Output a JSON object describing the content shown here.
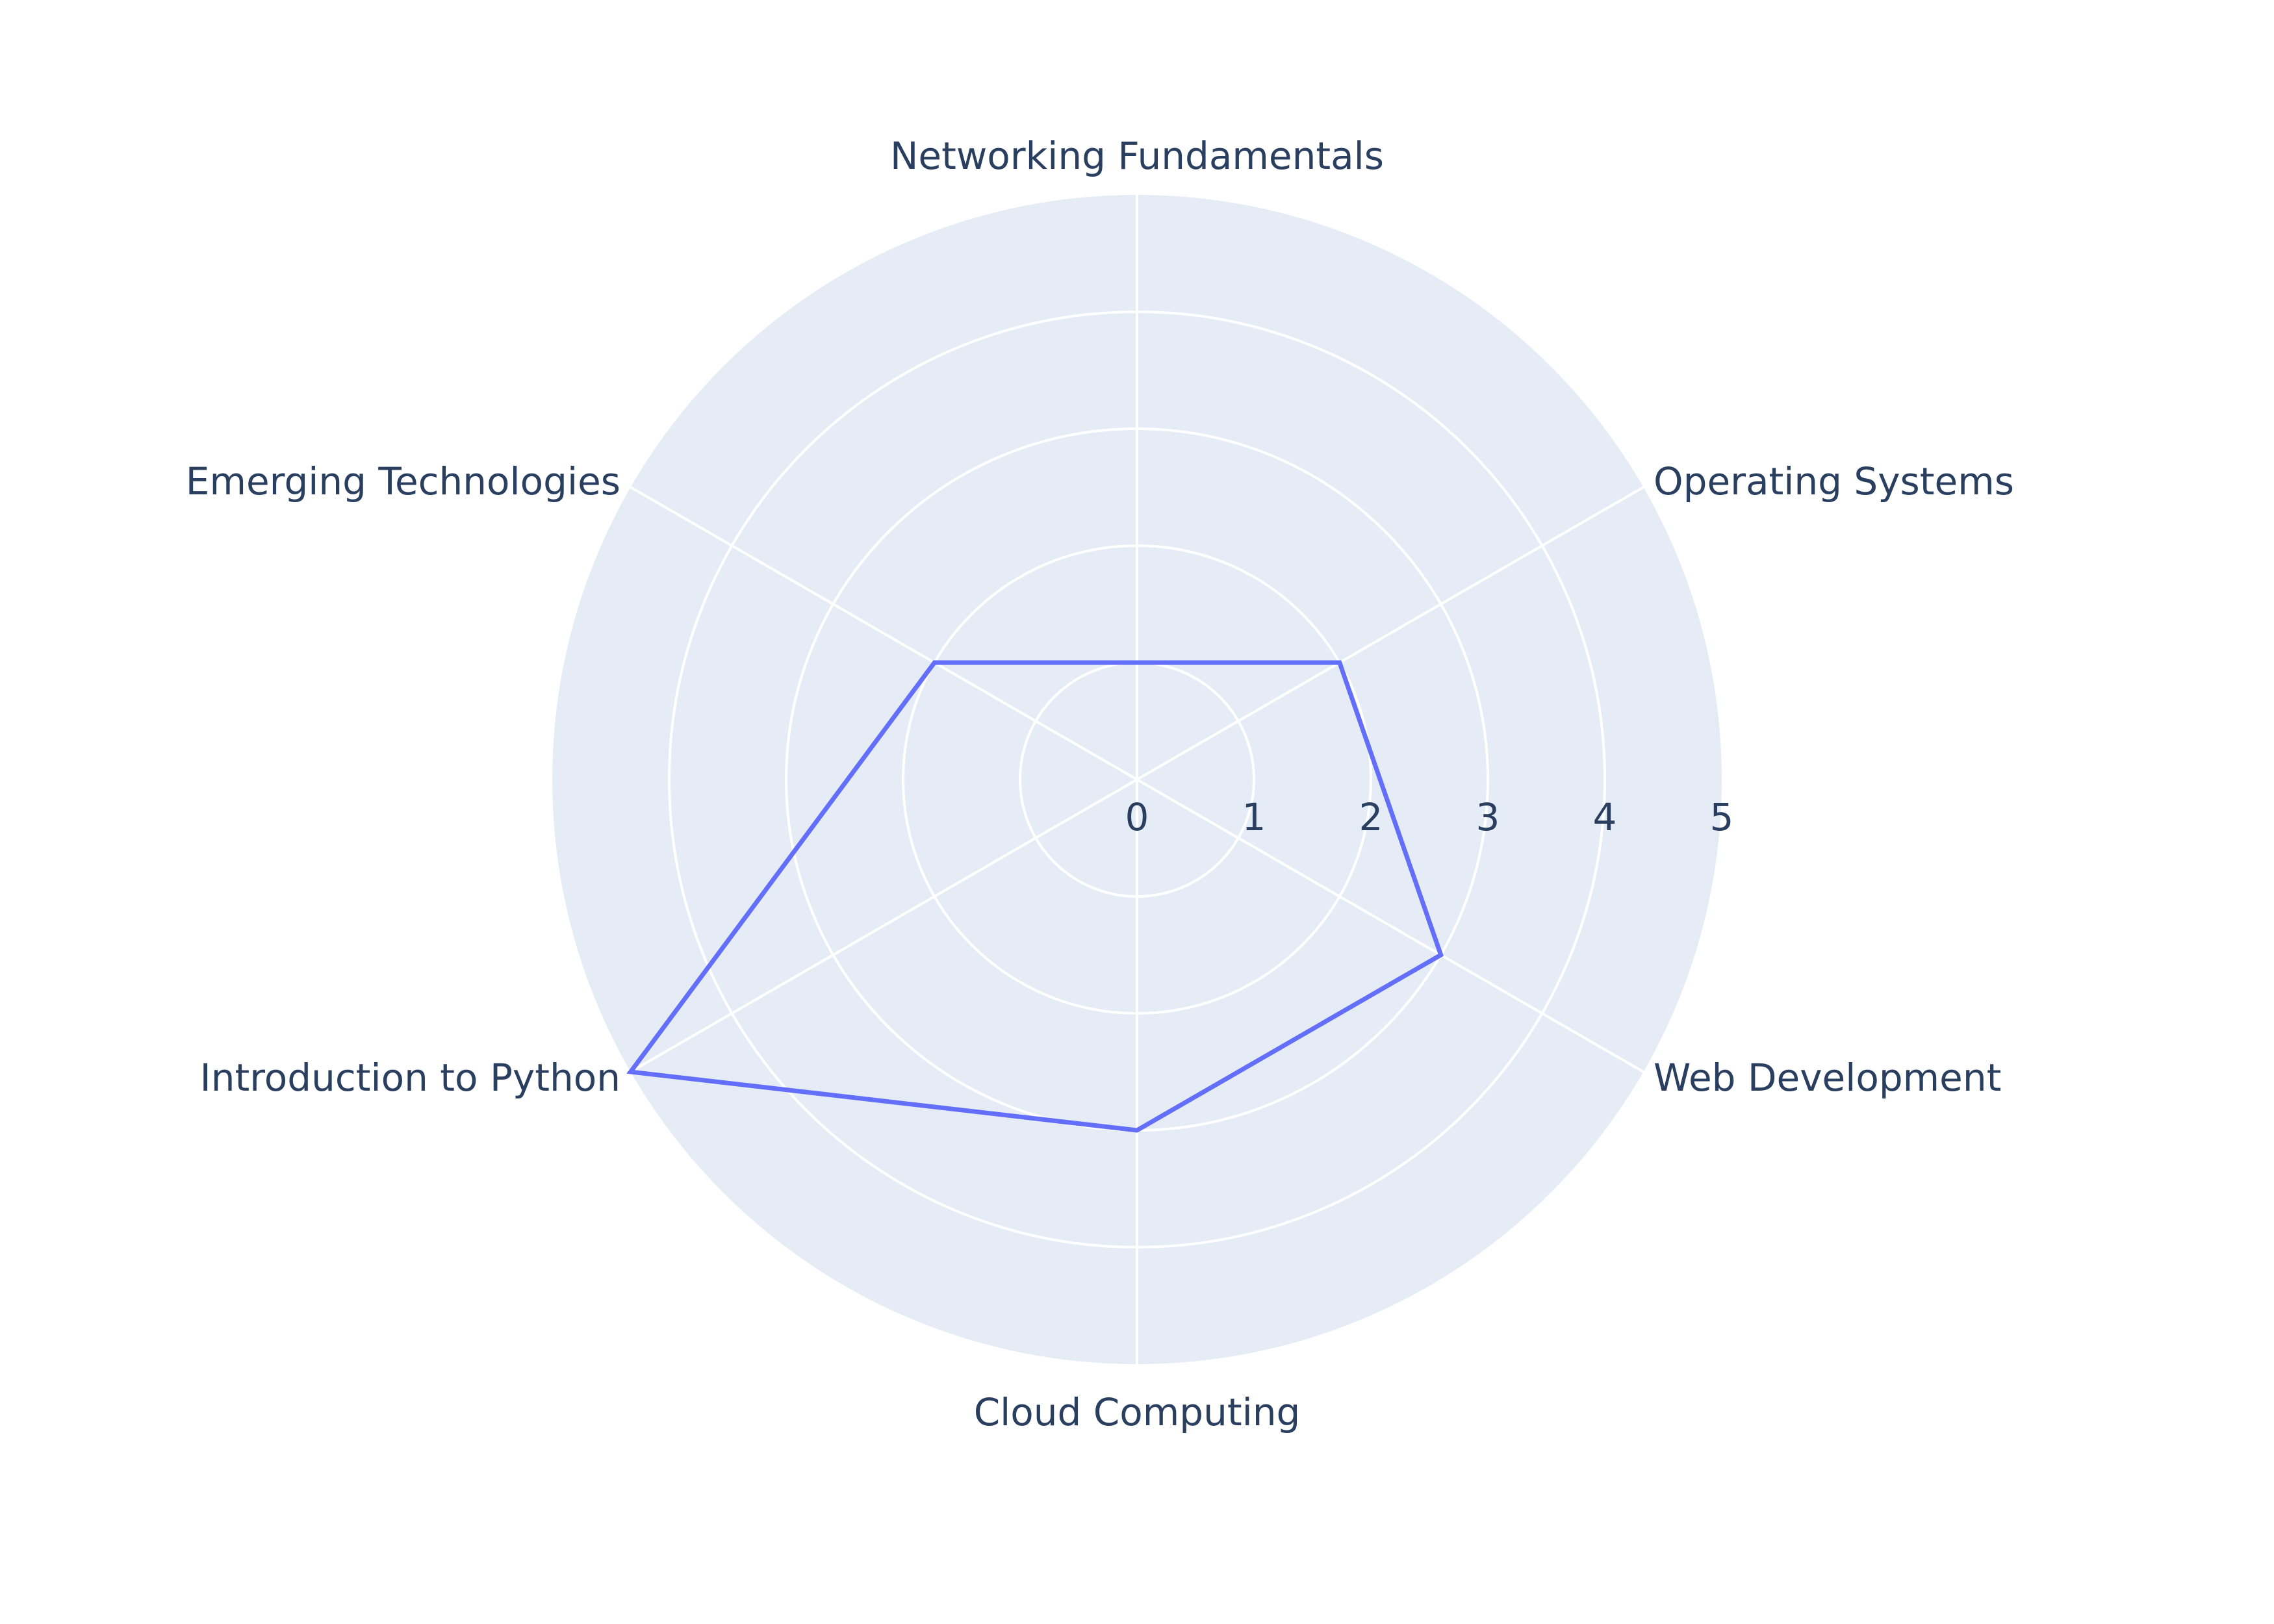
{
  "chart_data": {
    "type": "radar",
    "categories": [
      "Networking Fundamentals",
      "Operating Systems",
      "Web Development",
      "Cloud Computing",
      "Introduction to Python",
      "Emerging Technologies"
    ],
    "series": [
      {
        "values": [
          1,
          2,
          3,
          3,
          5,
          2
        ],
        "color": "#636efa"
      }
    ],
    "radial_range": [
      0,
      5
    ],
    "radial_ticks": [
      "0",
      "1",
      "2",
      "3",
      "4",
      "5"
    ],
    "angular_direction": "clockwise",
    "angular_start": "top",
    "grid": true,
    "legend": false
  },
  "colors": {
    "polar_background": "#e5ecf6",
    "grid_lines": "#ffffff",
    "text": "#2a3f5f",
    "series_line": "#636efa"
  }
}
